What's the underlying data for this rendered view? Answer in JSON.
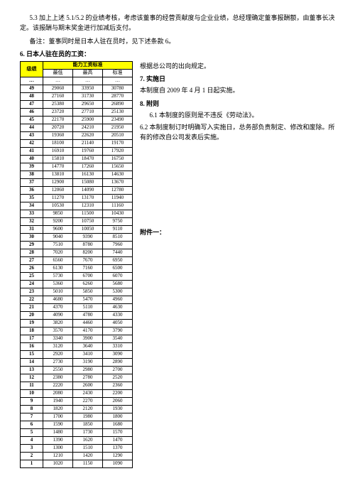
{
  "para_5_3": "5.3 加上上述 5.1/5.2 的业绩考核，考虑该董事的经营贡献度与企业业绩，总经理确定董事报酬额，由董事长决定。该报酬与期末奖金进行加减后支付。",
  "para_note": "备注：董事同时是日本人驻在员时，见下述条款 6。",
  "section6_title": "6. 日本人驻在员的工资：",
  "table": {
    "header_grade": "级绩",
    "header_std": "能力工资标准",
    "header_low": "最低",
    "header_high": "最高",
    "header_norm": "标准",
    "ellipsis": "…",
    "rows": [
      [
        "49",
        "29060",
        "33950",
        "30780"
      ],
      [
        "48",
        "27160",
        "31730",
        "28770"
      ],
      [
        "47",
        "25380",
        "29650",
        "26890"
      ],
      [
        "46",
        "23720",
        "27710",
        "25130"
      ],
      [
        "45",
        "22170",
        "25900",
        "23490"
      ],
      [
        "44",
        "20720",
        "24210",
        "21950"
      ],
      [
        "43",
        "19360",
        "22620",
        "20510"
      ],
      [
        "42",
        "18100",
        "21140",
        "19170"
      ],
      [
        "41",
        "16910",
        "19760",
        "17920"
      ],
      [
        "40",
        "15810",
        "18470",
        "16750"
      ],
      [
        "39",
        "14770",
        "17260",
        "15650"
      ],
      [
        "38",
        "13810",
        "16130",
        "14630"
      ],
      [
        "37",
        "12900",
        "15080",
        "13670"
      ],
      [
        "36",
        "12060",
        "14090",
        "12780"
      ],
      [
        "35",
        "11270",
        "13170",
        "11940"
      ],
      [
        "34",
        "10530",
        "12310",
        "11160"
      ],
      [
        "33",
        "9850",
        "11500",
        "10430"
      ],
      [
        "32",
        "9200",
        "10750",
        "9750"
      ],
      [
        "31",
        "9600",
        "10050",
        "9110"
      ],
      [
        "30",
        "9040",
        "9390",
        "8510"
      ],
      [
        "29",
        "7510",
        "8780",
        "7960"
      ],
      [
        "28",
        "7020",
        "8200",
        "7440"
      ],
      [
        "27",
        "6560",
        "7670",
        "6950"
      ],
      [
        "26",
        "6130",
        "7160",
        "6500"
      ],
      [
        "25",
        "5730",
        "6700",
        "6070"
      ],
      [
        "24",
        "5360",
        "6260",
        "5680"
      ],
      [
        "23",
        "5010",
        "5850",
        "5300"
      ],
      [
        "22",
        "4680",
        "5470",
        "4960"
      ],
      [
        "21",
        "4370",
        "5110",
        "4630"
      ],
      [
        "20",
        "4090",
        "4780",
        "4330"
      ],
      [
        "19",
        "3820",
        "4460",
        "4050"
      ],
      [
        "18",
        "3570",
        "4170",
        "3790"
      ],
      [
        "17",
        "3340",
        "3900",
        "3540"
      ],
      [
        "16",
        "3120",
        "3640",
        "3310"
      ],
      [
        "15",
        "2920",
        "3410",
        "3090"
      ],
      [
        "14",
        "2730",
        "3190",
        "2890"
      ],
      [
        "13",
        "2550",
        "2980",
        "2700"
      ],
      [
        "12",
        "2380",
        "2780",
        "2520"
      ],
      [
        "11",
        "2220",
        "2600",
        "2360"
      ],
      [
        "10",
        "2080",
        "2430",
        "2200"
      ],
      [
        "9",
        "1940",
        "2270",
        "2060"
      ],
      [
        "8",
        "1820",
        "2120",
        "1930"
      ],
      [
        "7",
        "1700",
        "1980",
        "1800"
      ],
      [
        "6",
        "1590",
        "1850",
        "1680"
      ],
      [
        "5",
        "1480",
        "1730",
        "1570"
      ],
      [
        "4",
        "1390",
        "1620",
        "1470"
      ],
      [
        "3",
        "1300",
        "1510",
        "1370"
      ],
      [
        "2",
        "1210",
        "1420",
        "1290"
      ],
      [
        "1",
        "1020",
        "1150",
        "1090"
      ]
    ]
  },
  "right": {
    "line1": "根据总公司的出向规定。",
    "sec7_title": "7. 实施日",
    "sec7_body": "本制度自 2009 年 4 月 1 日起实施。",
    "sec8_title": "8. 附则",
    "sec8_1": "6.1 本制度的原则是不违反《劳动法》。",
    "sec8_2": "6.2 本制度制订时明确写入实施日，总务部负责制定、修改和废除。所有的修改自公司发表后实施。",
    "attach": "附件一："
  }
}
